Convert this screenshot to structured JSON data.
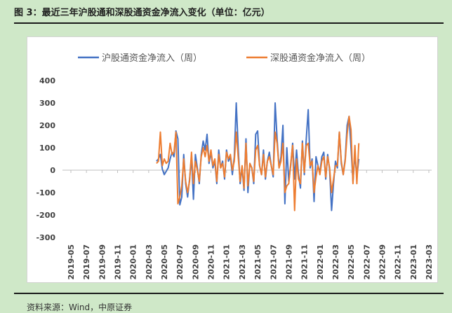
{
  "title": "图 3：最近三年沪股通和深股通资金净流入变化（单位：亿元）",
  "source": "资料来源：Wind，中原证券",
  "chart_data": {
    "type": "line",
    "xlabel": "",
    "ylabel": "",
    "ylim": [
      -300,
      400
    ],
    "yticks": [
      -300,
      -200,
      -100,
      0,
      100,
      200,
      300,
      400
    ],
    "grid": false,
    "legend_position": "top",
    "x_tick_labels": [
      "2019-05",
      "2019-07",
      "2019-09",
      "2019-11",
      "2020-01",
      "2020-03",
      "2020-05",
      "2020-07",
      "2020-09",
      "2020-11",
      "2021-01",
      "2021-03",
      "2021-05",
      "2021-07",
      "2021-09",
      "2021-11",
      "2022-01",
      "2022-03",
      "2022-05",
      "2022-07",
      "2022-09",
      "2022-11",
      "2023-01",
      "2023-03"
    ],
    "series_start": "2020-04",
    "points_per_month": 4,
    "series": [
      {
        "name": "沪股通资金净流入（周）",
        "color": "#4472c4",
        "values": [
          40,
          50,
          70,
          5,
          -20,
          -5,
          10,
          50,
          80,
          60,
          175,
          140,
          -155,
          -120,
          70,
          -60,
          -120,
          -40,
          60,
          -130,
          70,
          10,
          -60,
          70,
          130,
          90,
          160,
          30,
          80,
          10,
          40,
          -60,
          90,
          10,
          40,
          -40,
          90,
          40,
          60,
          -20,
          60,
          300,
          100,
          -60,
          10,
          -90,
          140,
          -100,
          30,
          10,
          -60,
          160,
          175,
          20,
          -20,
          90,
          -40,
          40,
          80,
          20,
          -30,
          300,
          140,
          10,
          60,
          200,
          -150,
          100,
          -50,
          20,
          120,
          -40,
          90,
          -20,
          -80,
          130,
          -20,
          140,
          270,
          10,
          50,
          -140,
          60,
          20,
          -10,
          60,
          80,
          -40,
          70,
          0,
          -180,
          -60,
          40,
          10,
          170,
          30,
          -20,
          50,
          200,
          240,
          100,
          -50,
          70,
          -30,
          50
        ]
      },
      {
        "name": "深股通资金净流入（周）",
        "color": "#ed7d31",
        "values": [
          30,
          40,
          170,
          20,
          50,
          30,
          40,
          120,
          70,
          80,
          170,
          -150,
          -120,
          -70,
          50,
          -50,
          -100,
          -50,
          80,
          -60,
          40,
          0,
          -50,
          60,
          100,
          60,
          110,
          40,
          90,
          20,
          50,
          -50,
          70,
          10,
          30,
          -30,
          80,
          50,
          70,
          0,
          40,
          170,
          60,
          -50,
          20,
          -80,
          120,
          -70,
          30,
          10,
          -50,
          90,
          110,
          20,
          -20,
          70,
          -30,
          40,
          60,
          20,
          -20,
          170,
          120,
          10,
          40,
          120,
          -100,
          -70,
          -60,
          30,
          110,
          -180,
          50,
          -40,
          -60,
          120,
          -10,
          110,
          120,
          20,
          40,
          -100,
          -30,
          20,
          -20,
          40,
          60,
          -30,
          60,
          10,
          -100,
          -40,
          20,
          20,
          170,
          40,
          -20,
          40,
          160,
          240,
          180,
          -60,
          110,
          -60,
          120
        ]
      }
    ]
  }
}
